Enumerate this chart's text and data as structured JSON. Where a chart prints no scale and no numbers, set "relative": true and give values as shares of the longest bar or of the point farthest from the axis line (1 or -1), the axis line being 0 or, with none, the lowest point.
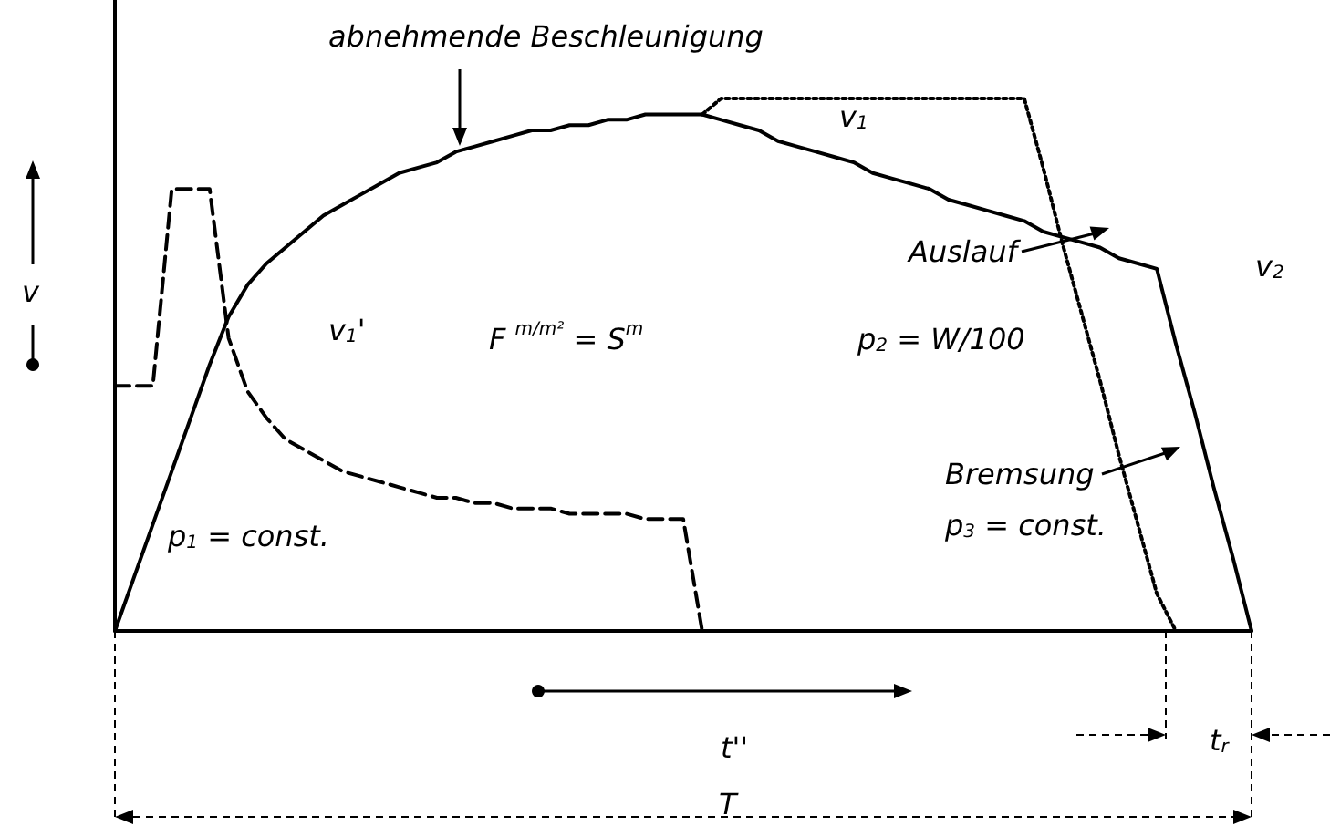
{
  "chart_data": {
    "type": "line",
    "relative": true,
    "grid": false,
    "marker": "none",
    "categories": [
      null,
      null,
      null,
      null,
      null,
      null,
      null,
      null,
      null,
      null,
      null,
      null,
      null,
      null,
      null,
      null,
      null,
      null,
      null,
      null,
      null,
      null,
      null,
      null,
      null,
      null,
      null,
      null,
      null,
      null,
      null,
      null,
      null,
      null,
      null,
      null,
      null,
      null,
      null,
      null,
      null,
      null,
      null,
      null,
      null,
      null,
      null,
      null,
      null,
      null,
      null,
      null,
      null,
      null,
      null,
      null,
      null,
      null,
      null,
      null,
      null
    ],
    "series": [
      {
        "color": "#000000",
        "line_style": "solid",
        "values": [
          0,
          0.1,
          0.2,
          0.3,
          0.4,
          0.5,
          0.59,
          0.65,
          0.69,
          0.72,
          0.75,
          0.78,
          0.8,
          0.82,
          0.84,
          0.86,
          0.87,
          0.88,
          0.9,
          0.91,
          0.92,
          0.93,
          0.94,
          0.94,
          0.95,
          0.95,
          0.96,
          0.96,
          0.97,
          0.97,
          0.97,
          0.97,
          0.96,
          0.95,
          0.94,
          0.92,
          0.91,
          0.9,
          0.89,
          0.88,
          0.86,
          0.85,
          0.84,
          0.83,
          0.81,
          0.8,
          0.79,
          0.78,
          0.77,
          0.75,
          0.74,
          0.73,
          0.72,
          0.7,
          0.69,
          0.68,
          0.54,
          0.41,
          0.27,
          0.14,
          0
        ]
      },
      {
        "color": "#000000",
        "line_style": "dashed",
        "values": [
          0.46,
          0.46,
          0.46,
          0.83,
          0.83,
          0.83,
          0.55,
          0.45,
          0.4,
          0.36,
          0.34,
          0.32,
          0.3,
          0.29,
          0.28,
          0.27,
          0.26,
          0.25,
          0.25,
          0.24,
          0.24,
          0.23,
          0.23,
          0.23,
          0.22,
          0.22,
          0.22,
          0.22,
          0.21,
          0.21,
          0.21,
          0,
          null,
          null,
          null,
          null,
          null,
          null,
          null,
          null,
          null,
          null,
          null,
          null,
          null,
          null,
          null,
          null,
          null,
          null,
          null,
          null,
          null,
          null,
          null,
          null,
          null,
          null,
          null,
          null,
          null
        ]
      },
      {
        "color": "#000000",
        "line_style": "dotted",
        "values": [
          null,
          null,
          null,
          null,
          null,
          null,
          null,
          null,
          null,
          null,
          null,
          null,
          null,
          null,
          null,
          null,
          null,
          null,
          null,
          null,
          null,
          null,
          null,
          null,
          null,
          null,
          null,
          null,
          null,
          null,
          null,
          0.97,
          1,
          1,
          1,
          1,
          1,
          1,
          1,
          1,
          1,
          1,
          1,
          1,
          1,
          1,
          1,
          1,
          1,
          0.87,
          0.73,
          0.6,
          0.47,
          0.33,
          0.2,
          0.07,
          0,
          null,
          null,
          null,
          null
        ]
      }
    ],
    "annotations": [
      "abnehmende Beschleunigung",
      "v",
      "v$_{1}$'",
      "F $^{m/m²}$ = S$^{m}$",
      "v$_{1}$",
      "Auslauf",
      "p$_{2}$ = W/100",
      "v$_{2}$",
      "p$_{1}$ = const.",
      "Bremsung",
      "p$_{3}$ = const.",
      "t''",
      "t$_{r}$",
      "T"
    ]
  }
}
